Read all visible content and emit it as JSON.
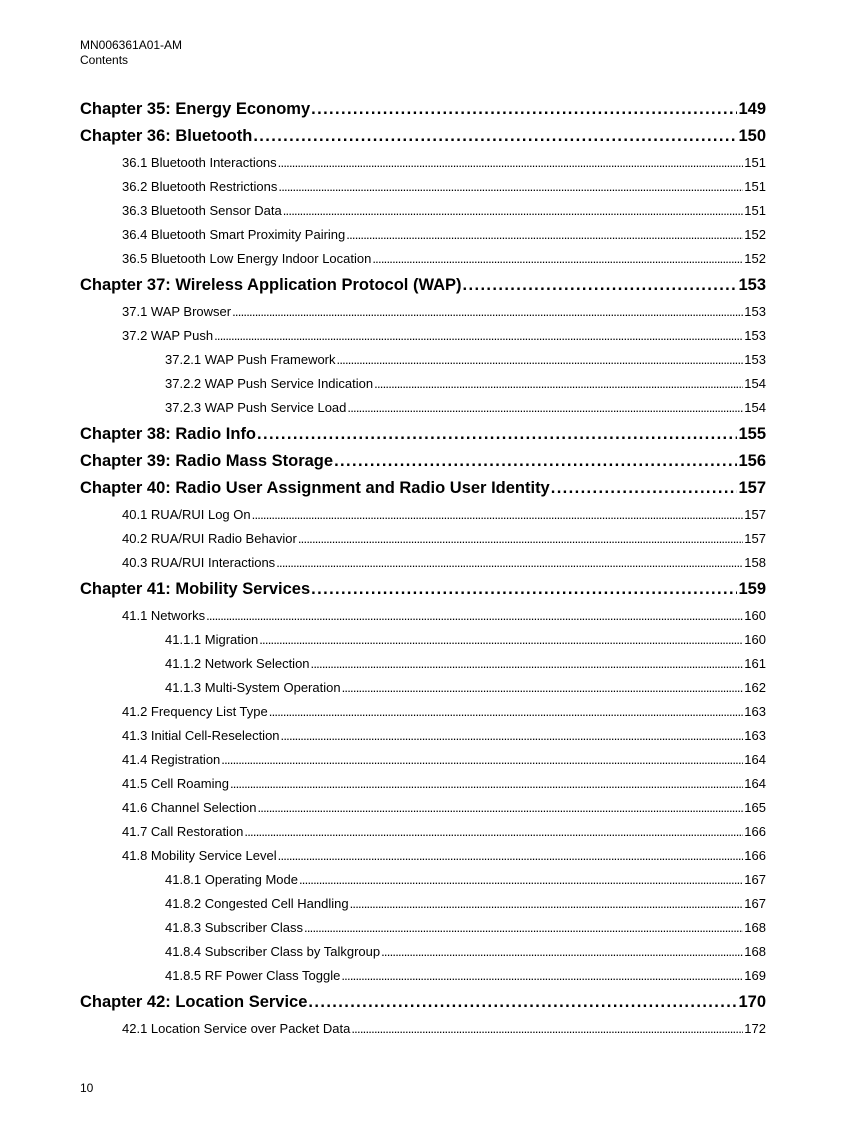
{
  "header": {
    "doc_id": "MN006361A01-AM",
    "section": "Contents"
  },
  "toc": [
    {
      "level": 1,
      "title": "Chapter 35: Energy Economy",
      "page": "149"
    },
    {
      "level": 1,
      "title": "Chapter 36: Bluetooth",
      "page": "150"
    },
    {
      "level": 2,
      "title": "36.1 Bluetooth Interactions",
      "page": "151"
    },
    {
      "level": 2,
      "title": "36.2 Bluetooth Restrictions",
      "page": "151"
    },
    {
      "level": 2,
      "title": "36.3 Bluetooth Sensor Data",
      "page": "151"
    },
    {
      "level": 2,
      "title": "36.4 Bluetooth Smart Proximity Pairing",
      "page": "152"
    },
    {
      "level": 2,
      "title": "36.5 Bluetooth Low Energy Indoor Location",
      "page": "152"
    },
    {
      "level": 1,
      "title": "Chapter 37: Wireless Application Protocol (WAP)",
      "page": "153"
    },
    {
      "level": 2,
      "title": "37.1 WAP Browser",
      "page": "153"
    },
    {
      "level": 2,
      "title": "37.2 WAP Push",
      "page": "153"
    },
    {
      "level": 3,
      "title": "37.2.1 WAP Push Framework",
      "page": "153"
    },
    {
      "level": 3,
      "title": "37.2.2 WAP Push Service Indication",
      "page": "154"
    },
    {
      "level": 3,
      "title": "37.2.3 WAP Push Service Load",
      "page": "154"
    },
    {
      "level": 1,
      "title": "Chapter 38: Radio Info",
      "page": "155"
    },
    {
      "level": 1,
      "title": "Chapter 39: Radio Mass Storage",
      "page": "156"
    },
    {
      "level": 1,
      "title": "Chapter 40: Radio User Assignment and Radio User Identity",
      "page": "157"
    },
    {
      "level": 2,
      "title": "40.1 RUA/RUI Log On",
      "page": "157"
    },
    {
      "level": 2,
      "title": "40.2 RUA/RUI Radio Behavior",
      "page": "157"
    },
    {
      "level": 2,
      "title": "40.3 RUA/RUI Interactions",
      "page": "158"
    },
    {
      "level": 1,
      "title": "Chapter 41: Mobility Services",
      "page": "159"
    },
    {
      "level": 2,
      "title": "41.1 Networks",
      "page": "160"
    },
    {
      "level": 3,
      "title": "41.1.1 Migration",
      "page": "160"
    },
    {
      "level": 3,
      "title": "41.1.2 Network Selection",
      "page": "161"
    },
    {
      "level": 3,
      "title": "41.1.3 Multi-System Operation",
      "page": "162"
    },
    {
      "level": 2,
      "title": "41.2 Frequency List Type",
      "page": "163"
    },
    {
      "level": 2,
      "title": "41.3 Initial Cell-Reselection",
      "page": "163"
    },
    {
      "level": 2,
      "title": "41.4 Registration",
      "page": "164"
    },
    {
      "level": 2,
      "title": "41.5 Cell Roaming",
      "page": "164"
    },
    {
      "level": 2,
      "title": "41.6 Channel Selection",
      "page": "165"
    },
    {
      "level": 2,
      "title": "41.7 Call Restoration",
      "page": "166"
    },
    {
      "level": 2,
      "title": "41.8 Mobility Service Level",
      "page": "166"
    },
    {
      "level": 3,
      "title": "41.8.1 Operating Mode",
      "page": "167"
    },
    {
      "level": 3,
      "title": "41.8.2 Congested Cell Handling",
      "page": "167"
    },
    {
      "level": 3,
      "title": "41.8.3 Subscriber Class",
      "page": "168"
    },
    {
      "level": 3,
      "title": "41.8.4 Subscriber Class by Talkgroup",
      "page": "168"
    },
    {
      "level": 3,
      "title": "41.8.5 RF Power Class Toggle",
      "page": "169"
    },
    {
      "level": 1,
      "title": "Chapter 42: Location Service",
      "page": "170"
    },
    {
      "level": 2,
      "title": "42.1 Location Service over Packet Data",
      "page": "172"
    }
  ],
  "footer": {
    "page_number": "10"
  }
}
